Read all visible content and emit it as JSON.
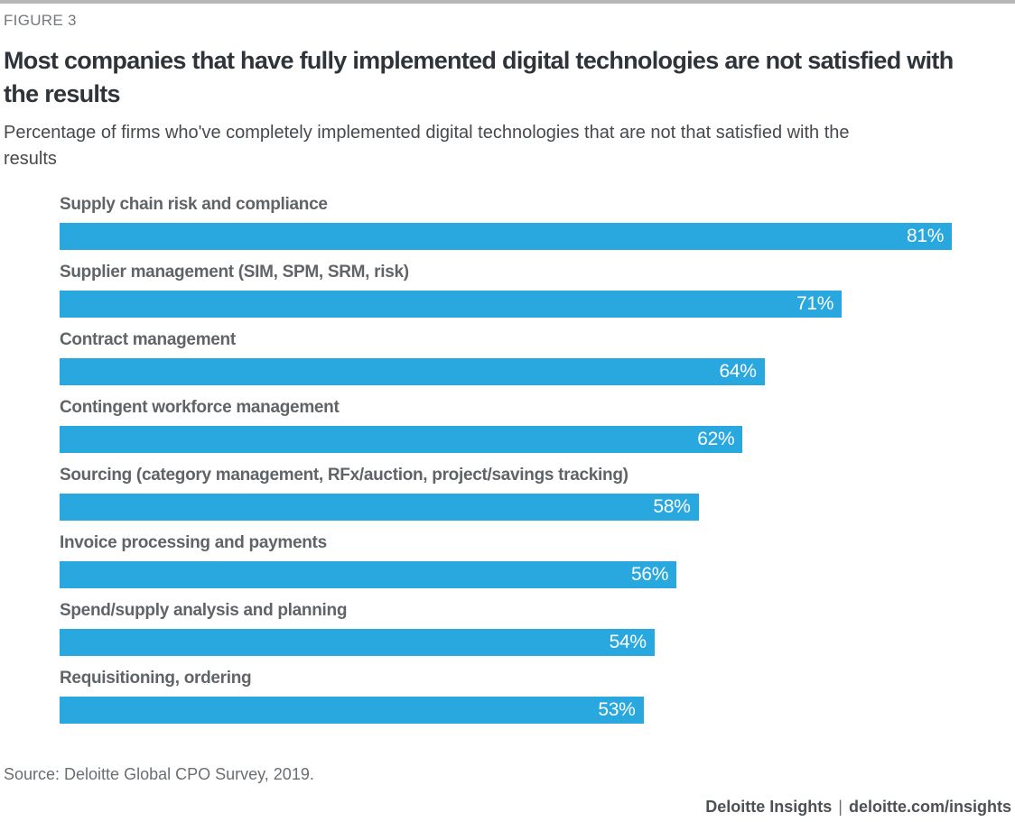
{
  "figure_label": "FIGURE 3",
  "title": "Most companies that have fully implemented digital technologies are not satisfied with the results",
  "subtitle": "Percentage of firms who've completely implemented digital technologies that are not that satisfied with the results",
  "source": "Source: Deloitte Global CPO Survey, 2019.",
  "footer": {
    "brand": "Deloitte Insights",
    "separator": "|",
    "url": "deloitte.com/insights"
  },
  "colors": {
    "bar": "#29a8e0",
    "bar_value_text": "#ffffff",
    "title_text": "#2f343a",
    "label_text": "#606468",
    "top_strip": "#b5b7b9"
  },
  "chart_data": {
    "type": "bar",
    "orientation": "horizontal",
    "title": "Most companies that have fully implemented digital technologies are not satisfied with the results",
    "subtitle": "Percentage of firms who've completely implemented digital technologies that are not that satisfied with the results",
    "categories": [
      "Supply chain risk and compliance",
      "Supplier management (SIM, SPM, SRM, risk)",
      "Contract management",
      "Contingent workforce management",
      "Sourcing (category management, RFx/auction, project/savings tracking)",
      "Invoice processing and payments",
      "Spend/supply analysis and planning",
      "Requisitioning, ordering"
    ],
    "values": [
      81,
      71,
      64,
      62,
      58,
      56,
      54,
      53
    ],
    "value_suffix": "%",
    "value_label_position": "inside-right",
    "bar_color": "#29a8e0",
    "xlim": [
      0,
      86.4
    ],
    "grid": false,
    "legend": false,
    "xlabel": "",
    "ylabel": ""
  }
}
